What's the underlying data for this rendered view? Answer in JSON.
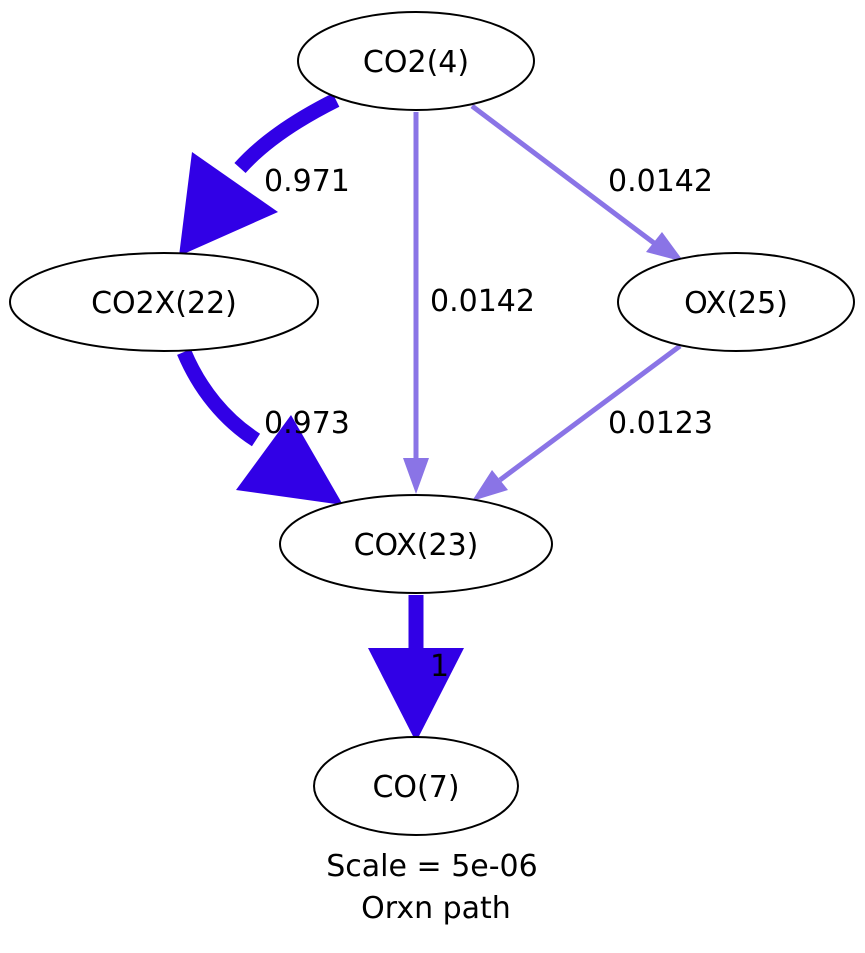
{
  "graph": {
    "nodes": {
      "co2": "CO2(4)",
      "co2x": "CO2X(22)",
      "ox": "OX(25)",
      "cox": "COX(23)",
      "co": "CO(7)"
    },
    "edges": [
      {
        "from": "CO2(4)",
        "to": "CO2X(22)",
        "label": "0.971",
        "color": "#3100e6"
      },
      {
        "from": "CO2(4)",
        "to": "COX(23)",
        "label": "0.0142",
        "color": "#8a74e6"
      },
      {
        "from": "CO2(4)",
        "to": "OX(25)",
        "label": "0.0142",
        "color": "#8a74e6"
      },
      {
        "from": "CO2X(22)",
        "to": "COX(23)",
        "label": "0.973",
        "color": "#3100e6"
      },
      {
        "from": "OX(25)",
        "to": "COX(23)",
        "label": "0.0123",
        "color": "#8a74e6"
      },
      {
        "from": "COX(23)",
        "to": "CO(7)",
        "label": "1",
        "color": "#3100e6"
      }
    ],
    "caption": {
      "line1": "Scale = 5e-06",
      "line2": "Orxn path"
    }
  }
}
